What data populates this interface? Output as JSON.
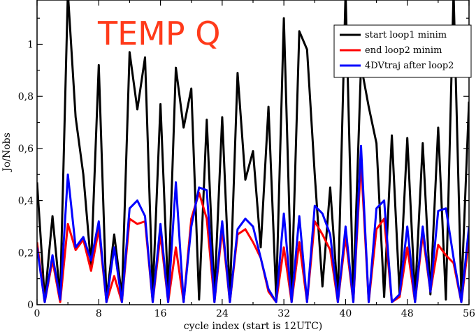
{
  "chart_data": {
    "type": "line",
    "title": "",
    "annotation": {
      "text": "TEMP Q",
      "color": "#ff3a1a"
    },
    "xlabel": "cycle index (start is 12UTC)",
    "ylabel": "Jo/Nobs",
    "xlim": [
      0,
      56
    ],
    "ylim": [
      0,
      1.17
    ],
    "x_ticks": [
      0,
      8,
      16,
      24,
      32,
      40,
      48,
      56
    ],
    "x_tick_labels": [
      "0",
      "8",
      "16",
      "24",
      "32",
      "40",
      "48",
      "56"
    ],
    "y_ticks": [
      0,
      0.2,
      0.4,
      0.6,
      0.8,
      1
    ],
    "y_tick_labels": [
      "0",
      "0,2",
      "0,4",
      "0,6",
      "0,8",
      "1"
    ],
    "grid": false,
    "legend_position": "top-right",
    "x": [
      0,
      1,
      2,
      3,
      4,
      5,
      6,
      7,
      8,
      9,
      10,
      11,
      12,
      13,
      14,
      15,
      16,
      17,
      18,
      19,
      20,
      21,
      22,
      23,
      24,
      25,
      26,
      27,
      28,
      29,
      30,
      31,
      32,
      33,
      34,
      35,
      36,
      37,
      38,
      39,
      40,
      41,
      42,
      43,
      44,
      45,
      46,
      47,
      48,
      49,
      50,
      51,
      52,
      53,
      54,
      55,
      56
    ],
    "series": [
      {
        "name": "start loop1 minim",
        "color": "#000000",
        "values": [
          0.47,
          0.02,
          0.34,
          0.03,
          1.2,
          0.72,
          0.5,
          0.15,
          0.92,
          0.02,
          0.27,
          0.03,
          0.97,
          0.75,
          0.95,
          0.04,
          0.77,
          0.04,
          0.91,
          0.68,
          0.83,
          0.02,
          0.71,
          0.04,
          0.72,
          0.03,
          0.89,
          0.48,
          0.59,
          0.22,
          0.76,
          0.03,
          1.1,
          0.05,
          1.05,
          0.98,
          0.5,
          0.07,
          0.45,
          0.03,
          1.2,
          0.03,
          0.92,
          0.76,
          0.62,
          0.03,
          0.65,
          0.04,
          0.64,
          0.03,
          0.62,
          0.04,
          0.68,
          0.02,
          1.2,
          0.04,
          0.78
        ]
      },
      {
        "name": "end loop2 minim",
        "color": "#ff0000",
        "values": [
          0.24,
          0.01,
          0.17,
          0.01,
          0.31,
          0.21,
          0.25,
          0.13,
          0.29,
          0.01,
          0.11,
          0.01,
          0.33,
          0.31,
          0.32,
          0.01,
          0.27,
          0.01,
          0.22,
          0.01,
          0.33,
          0.43,
          0.33,
          0.01,
          0.29,
          0.01,
          0.27,
          0.29,
          0.24,
          0.18,
          0.05,
          0.01,
          0.22,
          0.01,
          0.24,
          0.01,
          0.32,
          0.27,
          0.21,
          0.01,
          0.26,
          0.01,
          0.55,
          0.01,
          0.29,
          0.33,
          0.01,
          0.03,
          0.22,
          0.01,
          0.27,
          0.05,
          0.23,
          0.19,
          0.16,
          0.01,
          0.25
        ]
      },
      {
        "name": "4DVtraj after loop2",
        "color": "#0000ff",
        "values": [
          0.22,
          0.01,
          0.19,
          0.02,
          0.5,
          0.22,
          0.26,
          0.17,
          0.32,
          0.01,
          0.22,
          0.01,
          0.37,
          0.4,
          0.34,
          0.01,
          0.31,
          0.01,
          0.47,
          0.01,
          0.3,
          0.45,
          0.44,
          0.01,
          0.32,
          0.01,
          0.29,
          0.33,
          0.3,
          0.18,
          0.06,
          0.01,
          0.35,
          0.01,
          0.34,
          0.01,
          0.38,
          0.35,
          0.27,
          0.01,
          0.3,
          0.01,
          0.61,
          0.01,
          0.37,
          0.4,
          0.01,
          0.04,
          0.3,
          0.01,
          0.3,
          0.05,
          0.36,
          0.37,
          0.18,
          0.01,
          0.3
        ]
      }
    ]
  }
}
